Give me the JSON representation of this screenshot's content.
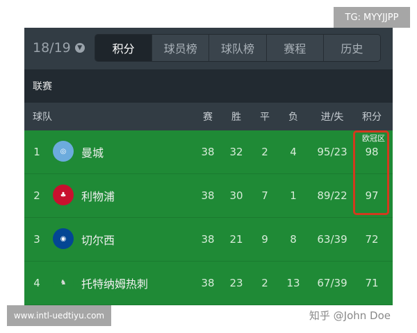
{
  "watermarks": {
    "top": "TG: MYYJJPP",
    "bottom": "www.intl-uedtiyu.com",
    "zhihu": "知乎 @John Doe"
  },
  "season": "18/19",
  "tabs": [
    {
      "label": "积分",
      "active": true
    },
    {
      "label": "球员榜"
    },
    {
      "label": "球队榜"
    },
    {
      "label": "赛程"
    },
    {
      "label": "历史"
    }
  ],
  "league": "联赛",
  "columns": [
    "球队",
    "赛",
    "胜",
    "平",
    "负",
    "进/失",
    "积分"
  ],
  "zone_label": "欧冠区",
  "colors": {
    "green": "#1f8a36",
    "highlight": "#d23a1e"
  },
  "rows": [
    {
      "rank": "1",
      "team": "曼城",
      "played": "38",
      "won": "32",
      "drawn": "2",
      "lost": "4",
      "goals": "95/23",
      "points": "98",
      "icon": "man-city-crest-icon"
    },
    {
      "rank": "2",
      "team": "利物浦",
      "played": "38",
      "won": "30",
      "drawn": "7",
      "lost": "1",
      "goals": "89/22",
      "points": "97",
      "icon": "liverpool-crest-icon"
    },
    {
      "rank": "3",
      "team": "切尔西",
      "played": "38",
      "won": "21",
      "drawn": "9",
      "lost": "8",
      "goals": "63/39",
      "points": "72",
      "icon": "chelsea-crest-icon"
    },
    {
      "rank": "4",
      "team": "托特纳姆热刺",
      "played": "38",
      "won": "23",
      "drawn": "2",
      "lost": "13",
      "goals": "67/39",
      "points": "71",
      "icon": "tottenham-crest-icon"
    }
  ]
}
